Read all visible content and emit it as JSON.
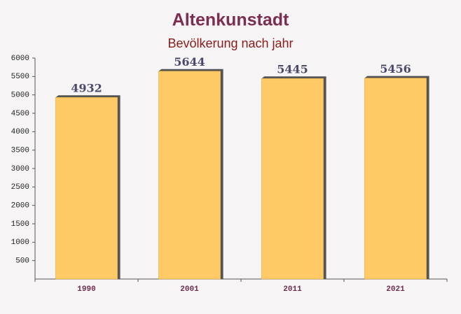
{
  "chart_data": {
    "type": "bar",
    "title": "Altenkunstadt",
    "subtitle": "Bevölkerung nach jahr",
    "categories": [
      "1990",
      "2001",
      "2011",
      "2021"
    ],
    "values": [
      4932,
      5644,
      5445,
      5456
    ],
    "color": "#ffc966",
    "ylim": [
      0,
      6000
    ],
    "yticks": [
      500,
      1000,
      1500,
      2000,
      2500,
      3000,
      3500,
      4000,
      4500,
      5000,
      5500,
      6000
    ]
  }
}
